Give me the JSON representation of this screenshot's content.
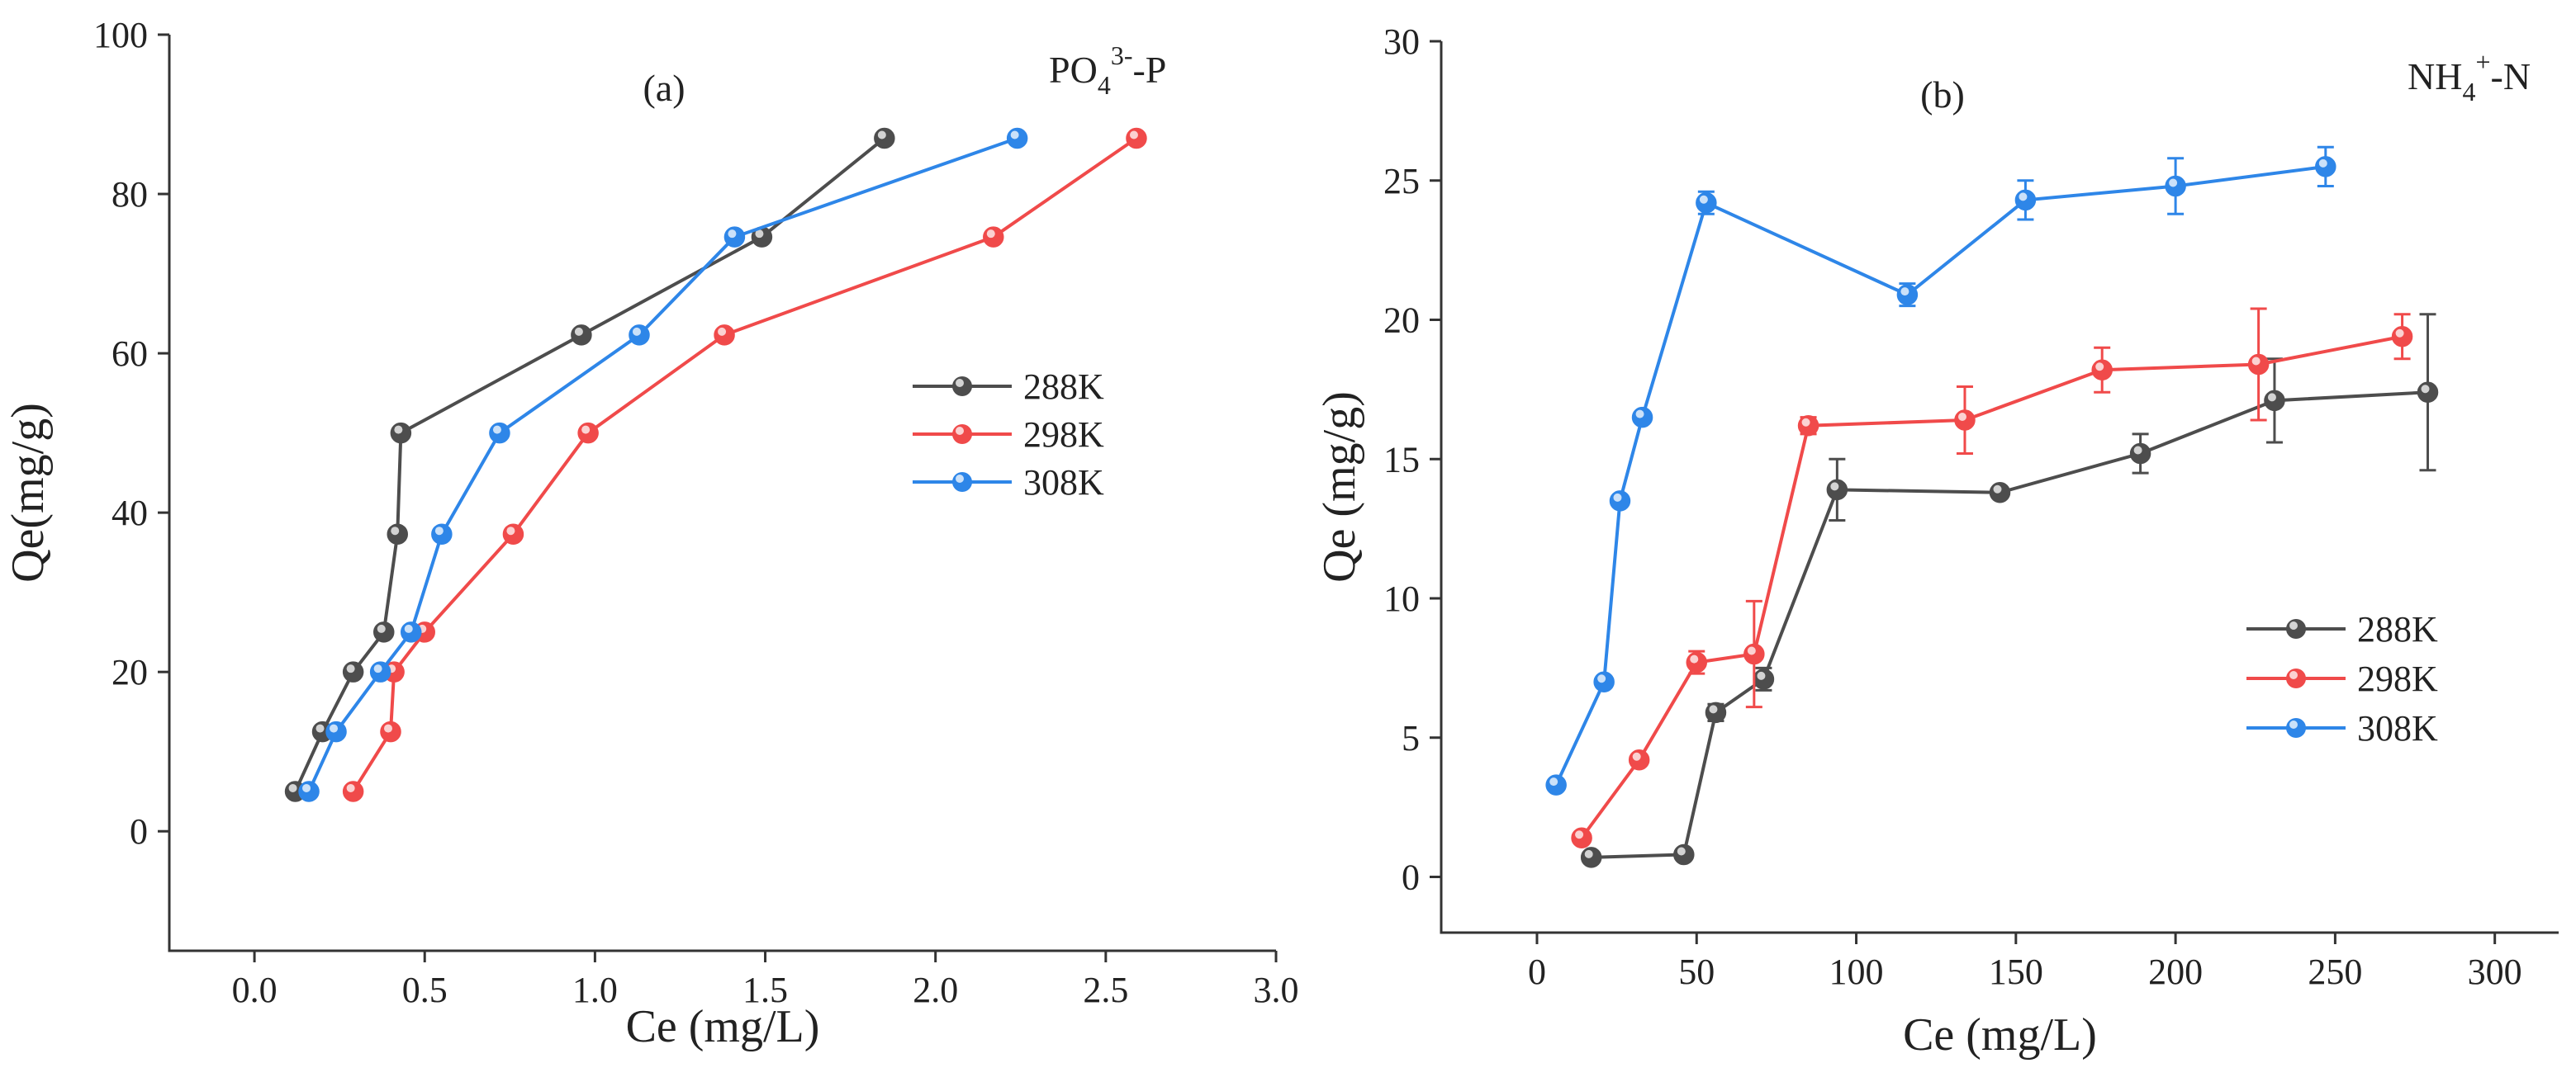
{
  "chart_data": [
    {
      "type": "line",
      "panel_label": "(a)",
      "species": {
        "base": "PO",
        "sub": "4",
        "sup": "3-",
        "tail": "-P"
      },
      "xlabel": "Ce (mg/L)",
      "ylabel": "Qe(mg/g)",
      "xlim": [
        -0.25,
        3.0
      ],
      "ylim": [
        -15,
        100
      ],
      "xticks": [
        0.0,
        0.5,
        1.0,
        1.5,
        2.0,
        2.5,
        3.0
      ],
      "xtick_labels": [
        "0.0",
        "0.5",
        "1.0",
        "1.5",
        "2.0",
        "2.5",
        "3.0"
      ],
      "yticks": [
        0,
        20,
        40,
        60,
        80,
        100
      ],
      "ytick_labels": [
        "0",
        "20",
        "40",
        "60",
        "80",
        "100"
      ],
      "legend_position": "center-right",
      "grid": false,
      "series": [
        {
          "name": "288K",
          "color": "#4d4d4d",
          "x": [
            0.12,
            0.2,
            0.29,
            0.38,
            0.42,
            0.43,
            0.96,
            1.49,
            1.85
          ],
          "y": [
            5,
            12.5,
            20,
            25,
            37.3,
            50,
            62.3,
            74.6,
            87
          ]
        },
        {
          "name": "298K",
          "color": "#f04a4a",
          "x": [
            0.29,
            0.4,
            0.41,
            0.5,
            0.76,
            0.98,
            1.38,
            2.17,
            2.59
          ],
          "y": [
            5,
            12.5,
            20,
            25,
            37.3,
            50,
            62.3,
            74.6,
            87
          ]
        },
        {
          "name": "308K",
          "color": "#2e86e8",
          "x": [
            0.16,
            0.24,
            0.37,
            0.46,
            0.55,
            0.72,
            1.13,
            1.41,
            2.24
          ],
          "y": [
            5,
            12.5,
            20,
            25,
            37.3,
            50,
            62.3,
            74.6,
            87
          ]
        }
      ]
    },
    {
      "type": "line",
      "panel_label": "(b)",
      "species": {
        "base": "NH",
        "sub": "4",
        "sup": "+",
        "tail": "-N"
      },
      "xlabel": "Ce (mg/L)",
      "ylabel": "Qe (mg/g)",
      "xlim": [
        -30,
        320
      ],
      "ylim": [
        -2,
        30
      ],
      "xticks": [
        0,
        50,
        100,
        150,
        200,
        250,
        300
      ],
      "xtick_labels": [
        "0",
        "50",
        "100",
        "150",
        "200",
        "250",
        "300"
      ],
      "yticks": [
        0,
        5,
        10,
        15,
        20,
        25,
        30
      ],
      "ytick_labels": [
        "0",
        "5",
        "10",
        "15",
        "20",
        "25",
        "30"
      ],
      "legend_position": "center-right",
      "grid": false,
      "series": [
        {
          "name": "288K",
          "color": "#4d4d4d",
          "x": [
            17,
            46,
            56,
            71,
            94,
            145,
            189,
            231,
            279
          ],
          "y": [
            0.7,
            0.8,
            5.9,
            7.1,
            13.9,
            13.8,
            15.2,
            17.1,
            17.4
          ],
          "err": [
            0,
            0,
            0.3,
            0.4,
            1.1,
            0,
            0.7,
            1.5,
            2.8
          ]
        },
        {
          "name": "298K",
          "color": "#f04a4a",
          "x": [
            14,
            32,
            50,
            68,
            85,
            134,
            177,
            226,
            271
          ],
          "y": [
            1.4,
            4.2,
            7.7,
            8.0,
            16.2,
            16.4,
            18.2,
            18.4,
            19.4
          ],
          "err": [
            0,
            0,
            0.4,
            1.9,
            0.3,
            1.2,
            0.8,
            2.0,
            0.8
          ]
        },
        {
          "name": "308K",
          "color": "#2e86e8",
          "x": [
            6,
            21,
            26,
            33,
            53,
            116,
            153,
            200,
            247
          ],
          "y": [
            3.3,
            7.0,
            13.5,
            16.5,
            24.2,
            20.9,
            24.3,
            24.8,
            25.5
          ],
          "err": [
            0,
            0,
            0,
            0,
            0.4,
            0.4,
            0.7,
            1.0,
            0.7
          ]
        }
      ]
    }
  ]
}
